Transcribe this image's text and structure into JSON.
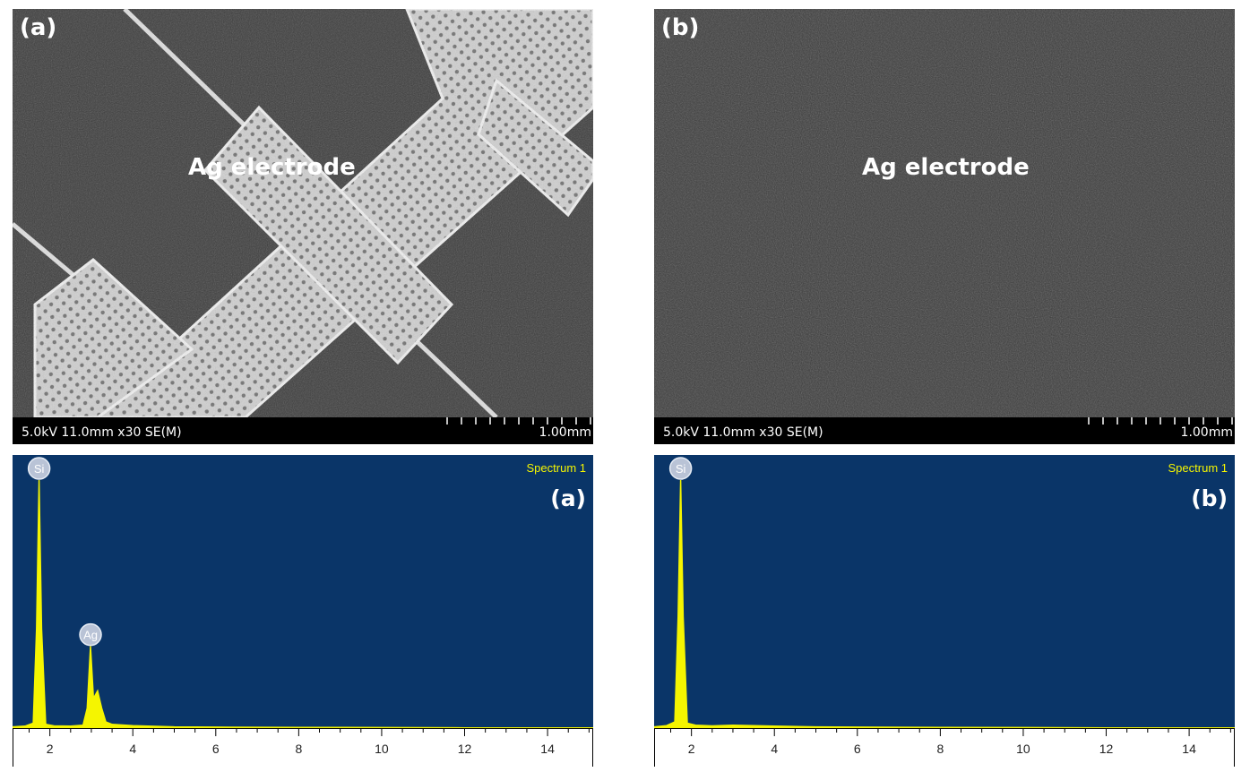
{
  "sem_a": {
    "panel_label": "(a)",
    "caption": "Ag electrode",
    "info": "5.0kV 11.0mm x30 SE(M)",
    "scale": "1.00mm"
  },
  "sem_b": {
    "panel_label": "(b)",
    "caption": "Ag electrode",
    "info": "5.0kV 11.0mm x30 SE(M)",
    "scale": "1.00mm"
  },
  "chart_data": [
    {
      "type": "line",
      "title": "Spectrum 1",
      "panel_label": "(a)",
      "xlabel": "",
      "ylabel": "",
      "xlim": [
        1.1,
        15.1
      ],
      "ylim": [
        0,
        100
      ],
      "x_ticks": [
        2,
        4,
        6,
        8,
        10,
        12,
        14
      ],
      "background": "#0a3568",
      "line_color": "#f5f500",
      "peaks": [
        {
          "label": "Si",
          "x": 1.74,
          "y": 100
        },
        {
          "label": "Ag",
          "x": 2.98,
          "y": 33
        }
      ],
      "series": [
        {
          "x": [
            1.1,
            1.4,
            1.6,
            1.68,
            1.74,
            1.8,
            1.9,
            2.1,
            2.5,
            2.8,
            2.9,
            2.98,
            3.05,
            3.15,
            3.25,
            3.35,
            3.5,
            4.0,
            5.0,
            6.0,
            8.0,
            10.0,
            12.0,
            15.1
          ],
          "y": [
            0.5,
            0.8,
            2.0,
            40,
            100,
            40,
            1.5,
            0.9,
            0.8,
            1.2,
            8,
            33,
            12,
            15,
            8,
            2.5,
            1.5,
            1.0,
            0.5,
            0.4,
            0.3,
            0.2,
            0.1,
            0.1
          ]
        }
      ]
    },
    {
      "type": "line",
      "title": "Spectrum 1",
      "panel_label": "(b)",
      "xlabel": "",
      "ylabel": "",
      "xlim": [
        1.1,
        15.1
      ],
      "ylim": [
        0,
        100
      ],
      "x_ticks": [
        2,
        4,
        6,
        8,
        10,
        12,
        14
      ],
      "background": "#0a3568",
      "line_color": "#f5f500",
      "peaks": [
        {
          "label": "Si",
          "x": 1.74,
          "y": 100
        }
      ],
      "series": [
        {
          "x": [
            1.1,
            1.4,
            1.6,
            1.68,
            1.74,
            1.8,
            1.9,
            2.1,
            2.5,
            3.0,
            4.0,
            5.0,
            6.0,
            8.0,
            10.0,
            12.0,
            15.1
          ],
          "y": [
            0.5,
            1.0,
            2.5,
            45,
            100,
            45,
            2.0,
            1.2,
            0.9,
            1.2,
            0.8,
            0.5,
            0.4,
            0.3,
            0.2,
            0.1,
            0.1
          ]
        }
      ]
    }
  ]
}
